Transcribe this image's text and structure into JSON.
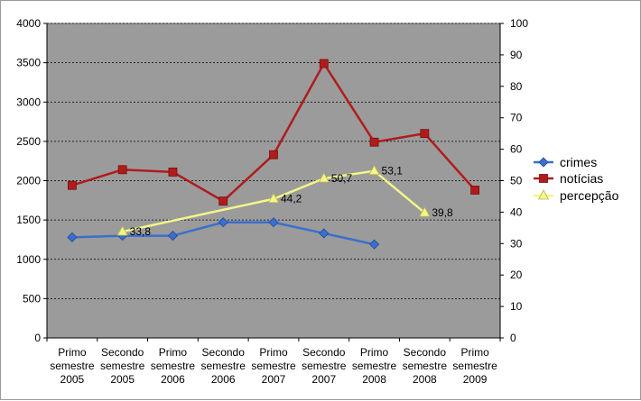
{
  "chart_data": {
    "type": "line",
    "colors": {
      "plot_bg": "#9b9b9b",
      "crimes": "#3a6fce",
      "noticias": "#b01c1c",
      "percepcao": "#f4f58a",
      "grid": "#000000"
    },
    "categories": [
      [
        "Primo",
        "semestre",
        "2005"
      ],
      [
        "Secondo",
        "semestre",
        "2005"
      ],
      [
        "Primo",
        "semestre",
        "2006"
      ],
      [
        "Secondo",
        "semestre",
        "2006"
      ],
      [
        "Primo",
        "semestre",
        "2007"
      ],
      [
        "Secondo",
        "semestre",
        "2007"
      ],
      [
        "Primo",
        "semestre",
        "2008"
      ],
      [
        "Secondo",
        "semestre",
        "2008"
      ],
      [
        "Primo",
        "semestre",
        "2009"
      ]
    ],
    "y_left": {
      "min": 0,
      "max": 4000,
      "step": 500,
      "ticks": [
        "0",
        "500",
        "1000",
        "1500",
        "2000",
        "2500",
        "3000",
        "3500",
        "4000"
      ]
    },
    "y_right": {
      "min": 0,
      "max": 100,
      "step": 10,
      "ticks": [
        "0",
        "10",
        "20",
        "30",
        "40",
        "50",
        "60",
        "70",
        "80",
        "90",
        "100"
      ]
    },
    "grid": true,
    "legend_position": "right",
    "series": [
      {
        "name": "crimes",
        "axis": "left",
        "marker": "diamond",
        "values": [
          1280,
          1300,
          1300,
          1470,
          1470,
          1330,
          1190,
          null,
          null
        ]
      },
      {
        "name": "notícias",
        "axis": "left",
        "marker": "square",
        "values": [
          1940,
          2140,
          2110,
          1740,
          2330,
          3490,
          2490,
          2600,
          1880
        ]
      },
      {
        "name": "percepção",
        "axis": "right",
        "marker": "triangle",
        "values": [
          null,
          33.8,
          null,
          null,
          44.2,
          50.7,
          53.1,
          39.8,
          null
        ],
        "labels": [
          null,
          "33,8",
          null,
          null,
          "44,2",
          "50,7",
          "53,1",
          "39,8",
          null
        ]
      }
    ]
  }
}
